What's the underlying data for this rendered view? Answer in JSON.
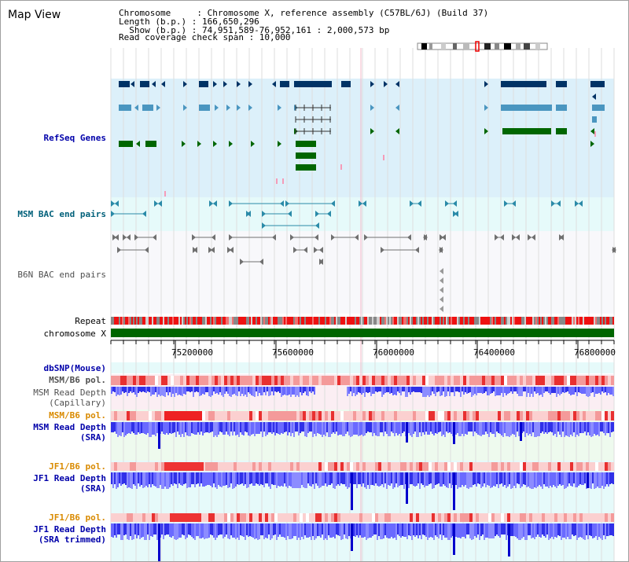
{
  "title": "Map View",
  "header": {
    "chromosome_line": "Chromosome     : Chromosome X, reference assembly (C57BL/6J) (Build 37)",
    "length_line": "Length (b.p.) : 166,650,296",
    "show_line": "  Show (b.p.) : 74,951,589-76,952,161 : 2,000,573 bp",
    "span_line": "Read coverage check span : 10,000"
  },
  "tracks": {
    "refseq": "RefSeq Genes",
    "msm_bac": "MSM BAC end pairs",
    "b6n_bac": "B6N BAC end pairs",
    "repeat": "Repeat",
    "chromosome": "chromosome X",
    "dbsnp": "dbSNP(Mouse)",
    "msm_b6_pol_1": "MSM/B6 pol.",
    "msm_read_depth_cap_1": "MSM Read Depth",
    "msm_read_depth_cap_2": "(Capillary)",
    "msm_b6_pol_2": "MSM/B6 pol.",
    "msm_read_depth_sra_1": "MSM Read Depth",
    "msm_read_depth_sra_2": "(SRA)",
    "jf1_b6_pol_1": "JF1/B6 pol.",
    "jf1_read_depth_sra_1": "JF1 Read Depth",
    "jf1_read_depth_sra_2": "(SRA)",
    "jf1_b6_pol_2": "JF1/B6 pol.",
    "jf1_read_depth_trim_1": "JF1 Read Depth",
    "jf1_read_depth_trim_2": "(SRA trimmed)"
  },
  "axis": {
    "ticks": [
      "75200000",
      "75600000",
      "76000000",
      "76400000",
      "76800000"
    ]
  },
  "colors": {
    "refseq_bg": "#dcf0fa",
    "bac_bg": "#e6fafa",
    "gene_dark": "#003366",
    "gene_mid": "#4a96c0",
    "gene_green": "#006600",
    "chromosome_bar": "#006600",
    "depth_blue": "#4040ff"
  }
}
